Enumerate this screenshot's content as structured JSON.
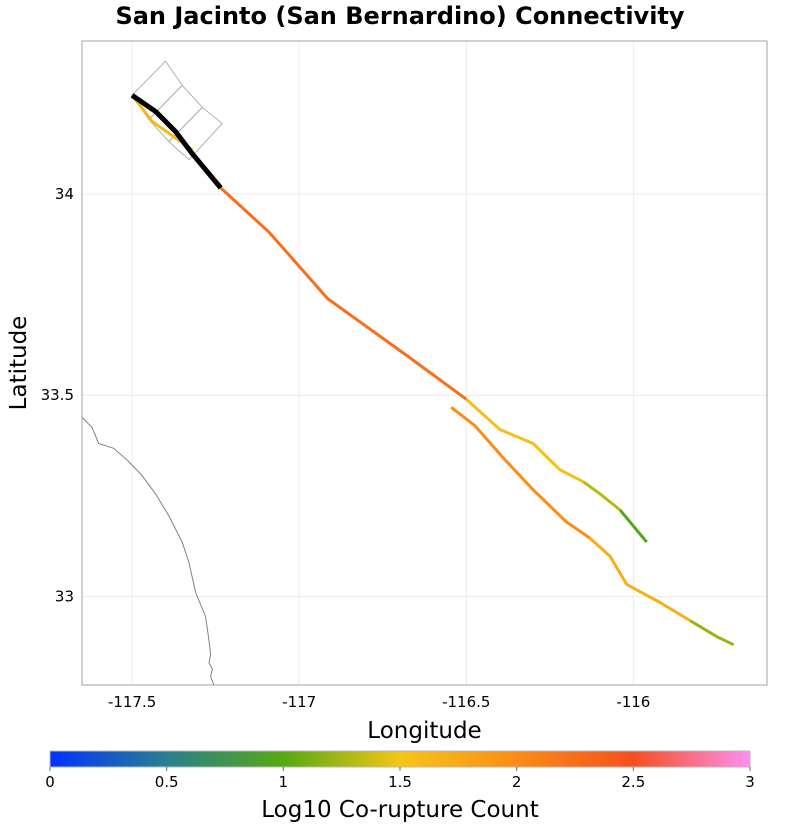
{
  "title": "San Jacinto (San Bernardino) Connectivity",
  "map": {
    "xlabel": "Longitude",
    "ylabel": "Latitude",
    "xlim": [
      -117.65,
      -115.6
    ],
    "ylim": [
      32.78,
      34.38
    ],
    "x_ticks": [
      {
        "value": -117.5,
        "label": "-117.5"
      },
      {
        "value": -117.0,
        "label": "-117"
      },
      {
        "value": -116.5,
        "label": "-116.5"
      },
      {
        "value": -116.0,
        "label": "-116"
      }
    ],
    "y_ticks": [
      {
        "value": 34.0,
        "label": "34"
      },
      {
        "value": 33.5,
        "label": "33.5"
      },
      {
        "value": 33.0,
        "label": "33"
      }
    ],
    "grid": true,
    "colors": {
      "selected_section": "#000000",
      "coastline": "#808080",
      "section_outline": "#b0b0b0",
      "grid": "#ececec",
      "frame": "#a0a0a0"
    }
  },
  "chart_data": {
    "type": "map",
    "selected_section": [
      [
        -117.5,
        34.245
      ],
      [
        -117.43,
        34.205
      ],
      [
        -117.37,
        34.155
      ],
      [
        -117.32,
        34.1
      ],
      [
        -117.235,
        34.015
      ]
    ],
    "section_outlines": [
      [
        [
          -117.5,
          34.245
        ],
        [
          -117.4,
          34.33
        ],
        [
          -117.35,
          34.27
        ],
        [
          -117.45,
          34.185
        ]
      ],
      [
        [
          -117.45,
          34.185
        ],
        [
          -117.35,
          34.27
        ],
        [
          -117.29,
          34.215
        ],
        [
          -117.39,
          34.13
        ]
      ],
      [
        [
          -117.39,
          34.13
        ],
        [
          -117.29,
          34.215
        ],
        [
          -117.23,
          34.175
        ],
        [
          -117.33,
          34.085
        ]
      ]
    ],
    "connected_faults": [
      {
        "log10_count": 1.6,
        "points": [
          [
            -117.5,
            34.245
          ],
          [
            -117.44,
            34.18
          ],
          [
            -117.32,
            34.11
          ]
        ]
      },
      {
        "log10_count": 2.25,
        "points": [
          [
            -117.235,
            34.015
          ],
          [
            -117.09,
            33.905
          ],
          [
            -116.915,
            33.74
          ],
          [
            -116.68,
            33.6
          ],
          [
            -116.5,
            33.49
          ]
        ]
      },
      {
        "log10_count": 1.55,
        "points": [
          [
            -116.5,
            33.49
          ],
          [
            -116.4,
            33.415
          ],
          [
            -116.3,
            33.38
          ],
          [
            -116.22,
            33.315
          ],
          [
            -116.15,
            33.285
          ]
        ]
      },
      {
        "log10_count": 1.3,
        "points": [
          [
            -116.15,
            33.285
          ],
          [
            -116.1,
            33.255
          ],
          [
            -116.04,
            33.215
          ]
        ]
      },
      {
        "log10_count": 0.95,
        "points": [
          [
            -116.04,
            33.215
          ],
          [
            -115.96,
            33.135
          ]
        ]
      },
      {
        "log10_count": 2.0,
        "points": [
          [
            -116.545,
            33.47
          ],
          [
            -116.475,
            33.425
          ],
          [
            -116.39,
            33.345
          ],
          [
            -116.3,
            33.265
          ],
          [
            -116.2,
            33.185
          ],
          [
            -116.165,
            33.165
          ],
          [
            -116.13,
            33.145
          ]
        ]
      },
      {
        "log10_count": 1.7,
        "points": [
          [
            -116.13,
            33.145
          ],
          [
            -116.07,
            33.1
          ],
          [
            -116.02,
            33.03
          ],
          [
            -115.92,
            32.985
          ],
          [
            -115.83,
            32.94
          ]
        ]
      },
      {
        "log10_count": 1.2,
        "points": [
          [
            -115.83,
            32.94
          ],
          [
            -115.75,
            32.9
          ],
          [
            -115.7,
            32.88
          ]
        ]
      }
    ],
    "coastline": [
      [
        -117.65,
        33.445
      ],
      [
        -117.62,
        33.42
      ],
      [
        -117.6,
        33.38
      ],
      [
        -117.555,
        33.368
      ],
      [
        -117.51,
        33.335
      ],
      [
        -117.47,
        33.3
      ],
      [
        -117.43,
        33.255
      ],
      [
        -117.39,
        33.2
      ],
      [
        -117.35,
        33.135
      ],
      [
        -117.33,
        33.085
      ],
      [
        -117.31,
        33.01
      ],
      [
        -117.28,
        32.95
      ],
      [
        -117.27,
        32.89
      ],
      [
        -117.265,
        32.855
      ],
      [
        -117.27,
        32.835
      ],
      [
        -117.26,
        32.82
      ],
      [
        -117.265,
        32.8
      ],
      [
        -117.255,
        32.78
      ]
    ],
    "colorbar": {
      "title": "Log10 Co-rupture Count",
      "range": [
        0,
        3
      ],
      "ticks": [
        {
          "value": 0,
          "label": "0"
        },
        {
          "value": 0.5,
          "label": "0.5"
        },
        {
          "value": 1,
          "label": "1"
        },
        {
          "value": 1.5,
          "label": "1.5"
        },
        {
          "value": 2,
          "label": "2"
        },
        {
          "value": 2.5,
          "label": "2.5"
        },
        {
          "value": 3,
          "label": "3"
        }
      ],
      "color_stops": [
        {
          "value": 0,
          "color": "#0033ff"
        },
        {
          "value": 0.5,
          "color": "#2a7f8f"
        },
        {
          "value": 1,
          "color": "#55aa11"
        },
        {
          "value": 1.5,
          "color": "#f5c518"
        },
        {
          "value": 2,
          "color": "#fb8c17"
        },
        {
          "value": 2.5,
          "color": "#f5501e"
        },
        {
          "value": 3,
          "color": "#ff8ff0"
        }
      ]
    }
  }
}
